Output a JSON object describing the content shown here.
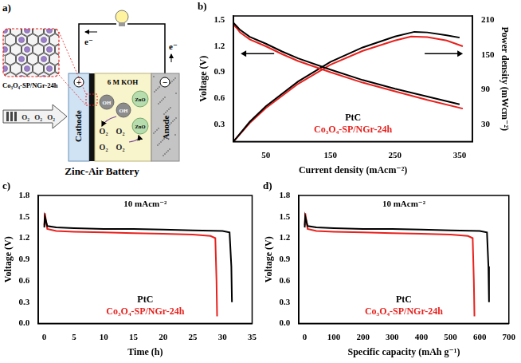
{
  "diagram": {
    "panel": "a)",
    "title": "Zinc-Air Battery",
    "catalyst": "Co₃O₄-SP/NGr-24h",
    "electrolyte": "6 M KOH",
    "cathode": "Cathode",
    "anode": "Anode",
    "electron": "e⁻",
    "cathode_sign": "+",
    "anode_sign": "−",
    "species": {
      "hydroxide": "OH",
      "zinc_oxide": "ZnO",
      "oxygen": "O₂"
    }
  },
  "chart_data": [
    {
      "type": "line",
      "title": "b)",
      "xlabel": "Current density (mAcm⁻²)",
      "ylabel": "Voltage (V)",
      "y2label": "Power density (mWcm⁻²)",
      "xlim": [
        0,
        370
      ],
      "xticks": [
        50,
        150,
        250,
        350
      ],
      "ylim": [
        0.1,
        1.55
      ],
      "yticks": [
        0.3,
        0.6,
        0.9,
        1.2,
        1.5
      ],
      "y2lim": [
        0,
        217.5
      ],
      "y2ticks": [
        30,
        90,
        150,
        210
      ],
      "grid": false,
      "legend": "bottom",
      "series": [
        {
          "name": "PtC",
          "color": "#000000",
          "x": [
            0,
            5,
            10,
            25,
            50,
            75,
            100,
            150,
            200,
            250,
            300,
            350
          ],
          "values": [
            1.47,
            1.43,
            1.39,
            1.31,
            1.23,
            1.14,
            1.06,
            0.93,
            0.81,
            0.71,
            0.62,
            0.53
          ]
        },
        {
          "name": "Co₃O₄-SP/NGr-24h",
          "color": "#e8211d",
          "x": [
            0,
            5,
            10,
            25,
            50,
            75,
            100,
            150,
            200,
            250,
            300,
            355
          ],
          "values": [
            1.45,
            1.41,
            1.36,
            1.28,
            1.2,
            1.11,
            1.03,
            0.9,
            0.78,
            0.68,
            0.58,
            0.48
          ]
        },
        {
          "name": "PtC",
          "color": "#000000",
          "axis": "y2",
          "x": [
            0,
            25,
            50,
            100,
            150,
            200,
            250,
            280,
            300,
            330,
            350
          ],
          "values": [
            0,
            34,
            61,
            104,
            138,
            163,
            182,
            190,
            189,
            184,
            180
          ]
        },
        {
          "name": "Co₃O₄-SP/NGr-24h",
          "color": "#e8211d",
          "axis": "y2",
          "x": [
            0,
            25,
            50,
            100,
            150,
            200,
            250,
            275,
            300,
            330,
            355
          ],
          "values": [
            0,
            32,
            58,
            100,
            133,
            157,
            175,
            182,
            181,
            175,
            165
          ]
        }
      ]
    },
    {
      "type": "line",
      "title": "c)",
      "xlabel": "Time (h)",
      "ylabel": "Voltage (V)",
      "annotations": [
        "10 mAcm⁻²"
      ],
      "xlim": [
        -1,
        35
      ],
      "xticks": [
        0,
        5,
        10,
        15,
        20,
        25,
        30,
        35
      ],
      "ylim": [
        0,
        1.8
      ],
      "yticks": [
        {
          "value": 0,
          "label": "0.0"
        },
        0.3,
        0.6,
        0.9,
        1.2,
        1.5,
        1.8
      ],
      "grid": false,
      "legend": "bottom",
      "series": [
        {
          "name": "PtC",
          "color": "#000000",
          "x": [
            0,
            0.1,
            0.5,
            2,
            5,
            10,
            15,
            20,
            25,
            30,
            31.2,
            31.5,
            31.6
          ],
          "values": [
            1.35,
            1.5,
            1.37,
            1.35,
            1.34,
            1.33,
            1.33,
            1.32,
            1.31,
            1.3,
            1.28,
            0.8,
            0.3
          ]
        },
        {
          "name": "Co₃O₄-SP/NGr-24h",
          "color": "#e8211d",
          "x": [
            0,
            0.1,
            0.5,
            2,
            5,
            10,
            15,
            20,
            25,
            28,
            28.8,
            29,
            29.1
          ],
          "values": [
            1.38,
            1.55,
            1.33,
            1.3,
            1.29,
            1.28,
            1.27,
            1.26,
            1.25,
            1.23,
            1.2,
            0.6,
            0.1
          ]
        }
      ]
    },
    {
      "type": "line",
      "title": "d)",
      "xlabel": "Specific capacity (mAh g⁻¹)",
      "ylabel": "Voltage (V)",
      "annotations": [
        "10 mAcm⁻²"
      ],
      "xlim": [
        -20,
        700
      ],
      "xticks": [
        0,
        100,
        200,
        300,
        400,
        500,
        600,
        700
      ],
      "ylim": [
        0,
        1.8
      ],
      "yticks": [
        {
          "value": 0,
          "label": "0.0"
        },
        0.3,
        0.6,
        0.9,
        1.2,
        1.5,
        1.8
      ],
      "grid": false,
      "legend": "bottom",
      "series": [
        {
          "name": "PtC",
          "color": "#000000",
          "x": [
            0,
            2,
            10,
            40,
            100,
            200,
            300,
            400,
            500,
            600,
            625,
            630,
            632
          ],
          "values": [
            1.35,
            1.5,
            1.37,
            1.35,
            1.34,
            1.33,
            1.33,
            1.32,
            1.31,
            1.3,
            1.28,
            0.8,
            0.3
          ]
        },
        {
          "name": "Co₃O₄-SP/NGr-24h",
          "color": "#e8211d",
          "x": [
            0,
            2,
            10,
            40,
            100,
            200,
            300,
            400,
            500,
            560,
            576,
            580,
            582
          ],
          "values": [
            1.38,
            1.55,
            1.33,
            1.3,
            1.29,
            1.28,
            1.27,
            1.26,
            1.25,
            1.23,
            1.2,
            0.6,
            0.1
          ]
        }
      ]
    }
  ]
}
